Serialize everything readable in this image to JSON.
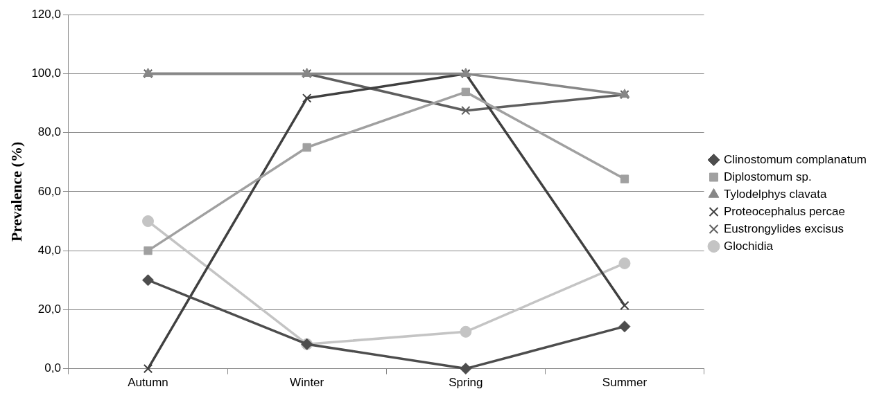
{
  "chart_data": {
    "type": "line",
    "ylabel": "Prevalence (%)",
    "categories": [
      "Autumn",
      "Winter",
      "Spring",
      "Summer"
    ],
    "ylim": [
      0,
      120
    ],
    "yticks": [
      {
        "value": 0,
        "label": "0,0"
      },
      {
        "value": 20,
        "label": "20,0"
      },
      {
        "value": 40,
        "label": "40,0"
      },
      {
        "value": 60,
        "label": "60,0"
      },
      {
        "value": 80,
        "label": "80,0"
      },
      {
        "value": 100,
        "label": "100,0"
      },
      {
        "value": 120,
        "label": "120,0"
      }
    ],
    "grid": "y",
    "legend": "right",
    "series": [
      {
        "name": "Clinostomum complanatum",
        "color": "#4d4d4d",
        "marker": "diamond",
        "values": [
          30,
          8.3,
          0,
          14.3
        ]
      },
      {
        "name": "Diplostomum sp.",
        "color": "#a0a0a0",
        "marker": "square",
        "values": [
          40,
          75,
          93.8,
          64.3
        ]
      },
      {
        "name": "Tylodelphys clavata",
        "color": "#878787",
        "marker": "triangle",
        "values": [
          100,
          100,
          100,
          92.9
        ]
      },
      {
        "name": "Proteocephalus percae",
        "color": "#404040",
        "marker": "cross",
        "values": [
          0,
          91.7,
          100,
          21.4
        ]
      },
      {
        "name": "Eustrongylides excisus",
        "color": "#5e5e5e",
        "marker": "cross",
        "values": [
          100,
          100,
          87.5,
          92.9
        ]
      },
      {
        "name": "Glochidia",
        "color": "#c4c4c4",
        "marker": "circle",
        "values": [
          50,
          8.3,
          12.5,
          35.7
        ]
      }
    ]
  }
}
